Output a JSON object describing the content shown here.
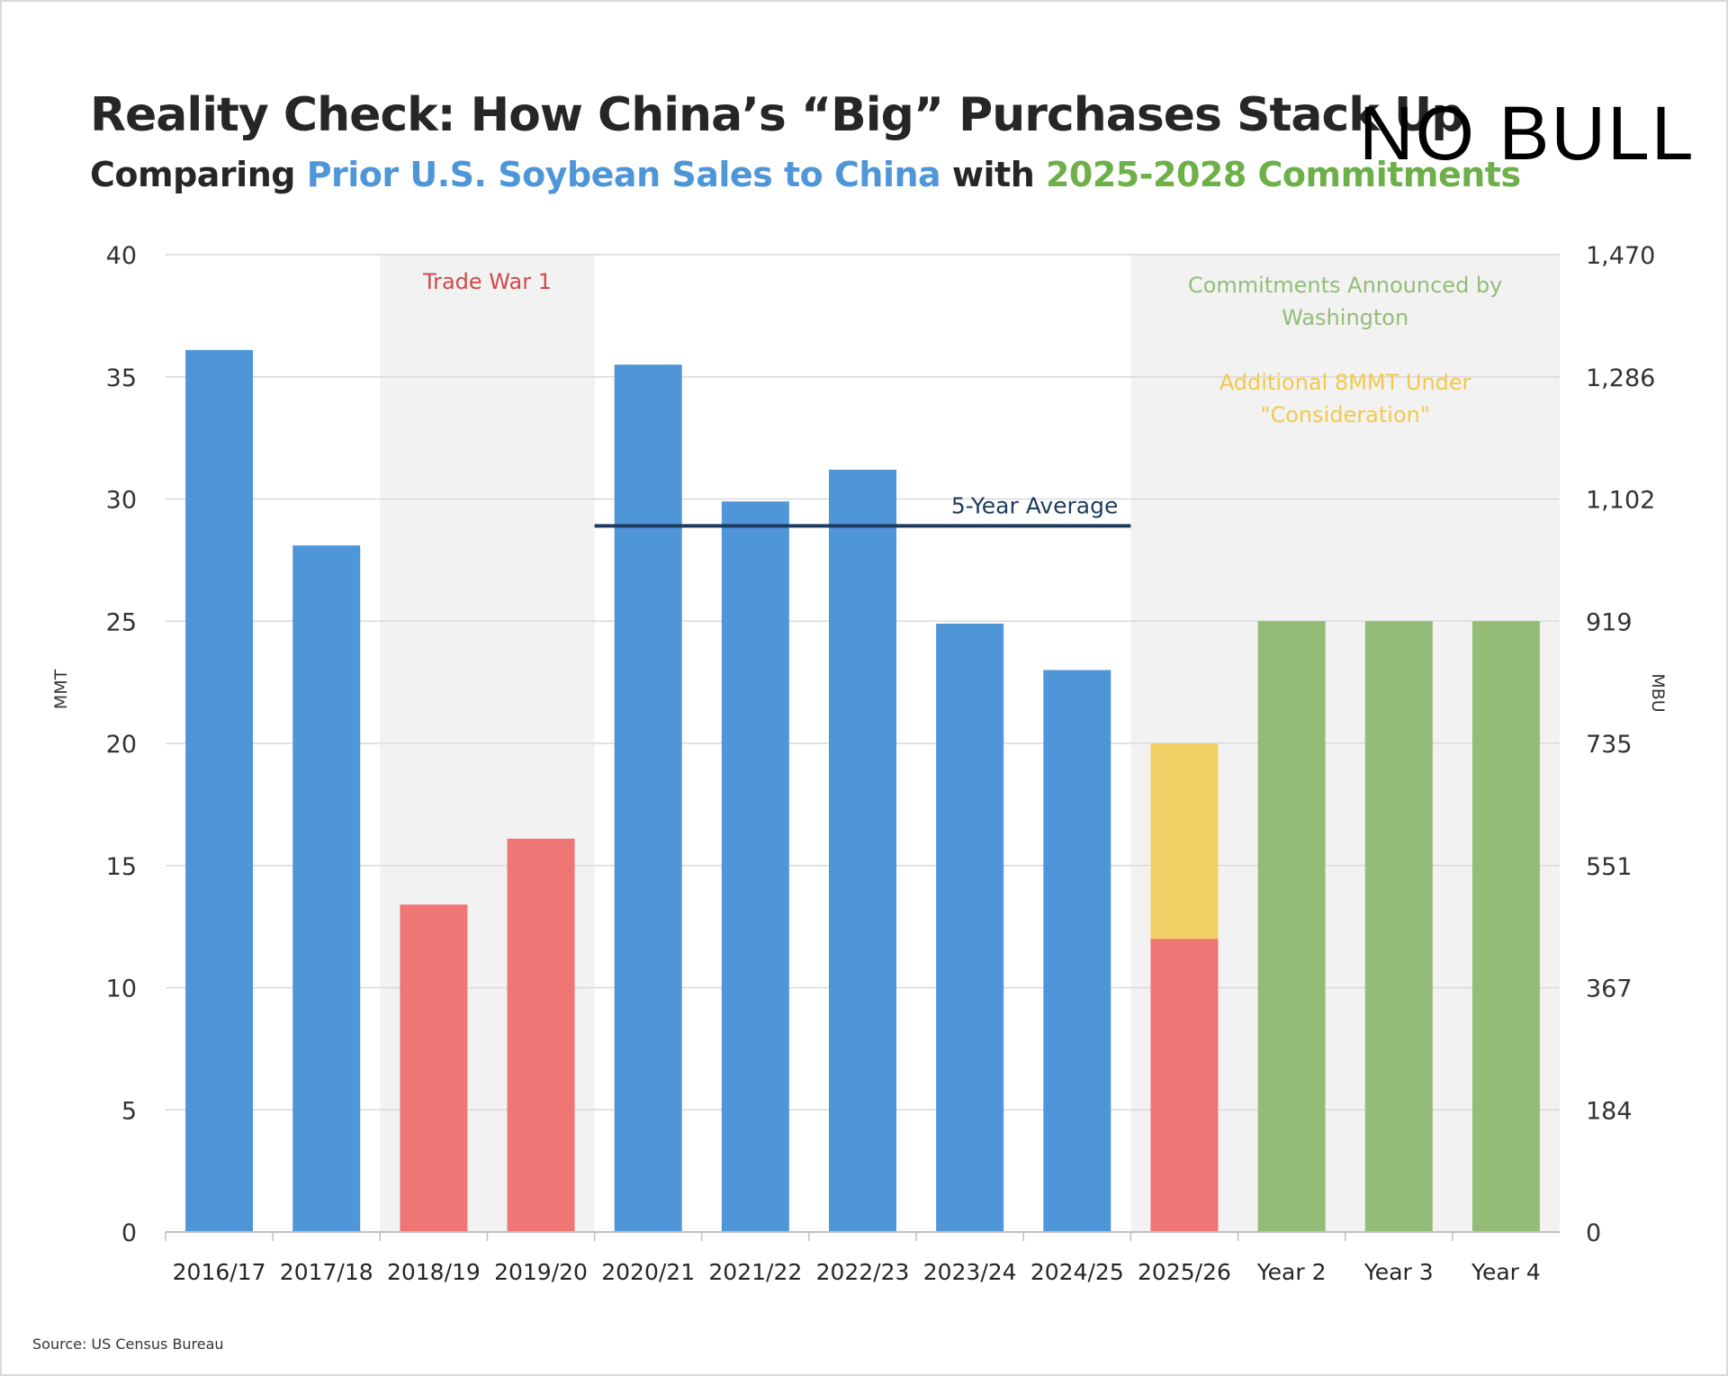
{
  "header": {
    "title": "Reality Check: How China’s “Big” Purchases Stack Up",
    "subtitle_part1": "Comparing ",
    "subtitle_part2": "Prior U.S. Soybean Sales to China",
    "subtitle_part3": " with ",
    "subtitle_part4": "2025-2028 Commitments",
    "logo": "NO BULL"
  },
  "source": "Source: US Census Bureau",
  "colors": {
    "blue": "#4f96d9",
    "red": "#f07575",
    "yellow": "#f2d066",
    "green": "#93bd77",
    "avg": "#1f3b5e",
    "shade": "#f2f2f2"
  },
  "chart_data": {
    "type": "bar",
    "title": "Reality Check: How China’s “Big” Purchases Stack Up",
    "ylabel": "MMT",
    "y2label": "MBU",
    "ylim": [
      0,
      40
    ],
    "yticks": [
      0,
      5,
      10,
      15,
      20,
      25,
      30,
      35,
      40
    ],
    "y2ticks": [
      "0",
      "184",
      "367",
      "551",
      "735",
      "919",
      "1,102",
      "1,286",
      "1,470"
    ],
    "grid": true,
    "categories": [
      "2016/17",
      "2017/18",
      "2018/19",
      "2019/20",
      "2020/21",
      "2021/22",
      "2022/23",
      "2023/24",
      "2024/25",
      "2025/26",
      "Year 2",
      "Year 3",
      "Year 4"
    ],
    "series": [
      {
        "name": "Prior U.S. Soybean Sales",
        "color": "blue",
        "values": [
          36.1,
          28.1,
          0,
          0,
          35.5,
          29.9,
          31.2,
          24.9,
          23.0,
          0,
          0,
          0,
          0
        ]
      },
      {
        "name": "Trade War Sales",
        "color": "red",
        "values": [
          0,
          0,
          13.4,
          16.1,
          0,
          0,
          0,
          0,
          0,
          12.0,
          0,
          0,
          0
        ]
      },
      {
        "name": "Additional Under Consideration",
        "color": "yellow",
        "values": [
          0,
          0,
          0,
          0,
          0,
          0,
          0,
          0,
          0,
          8.0,
          0,
          0,
          0
        ]
      },
      {
        "name": "Commitments",
        "color": "green",
        "values": [
          0,
          0,
          0,
          0,
          0,
          0,
          0,
          0,
          0,
          0,
          25,
          25,
          25
        ]
      }
    ],
    "average": {
      "label": "5-Year Average",
      "value": 28.9,
      "from_category": 4,
      "to_category": 8
    },
    "shaded_regions": [
      {
        "from_category": 2,
        "to_category": 3,
        "label": "Trade War 1",
        "label_color": "#d04a4a"
      },
      {
        "from_category": 9,
        "to_category": 12,
        "label": "Commitments Announced by Washington",
        "label_color": "#93bd77",
        "label2": "Additional 8MMT Under \"Consideration\"",
        "label2_color": "#f2c94c"
      }
    ]
  }
}
